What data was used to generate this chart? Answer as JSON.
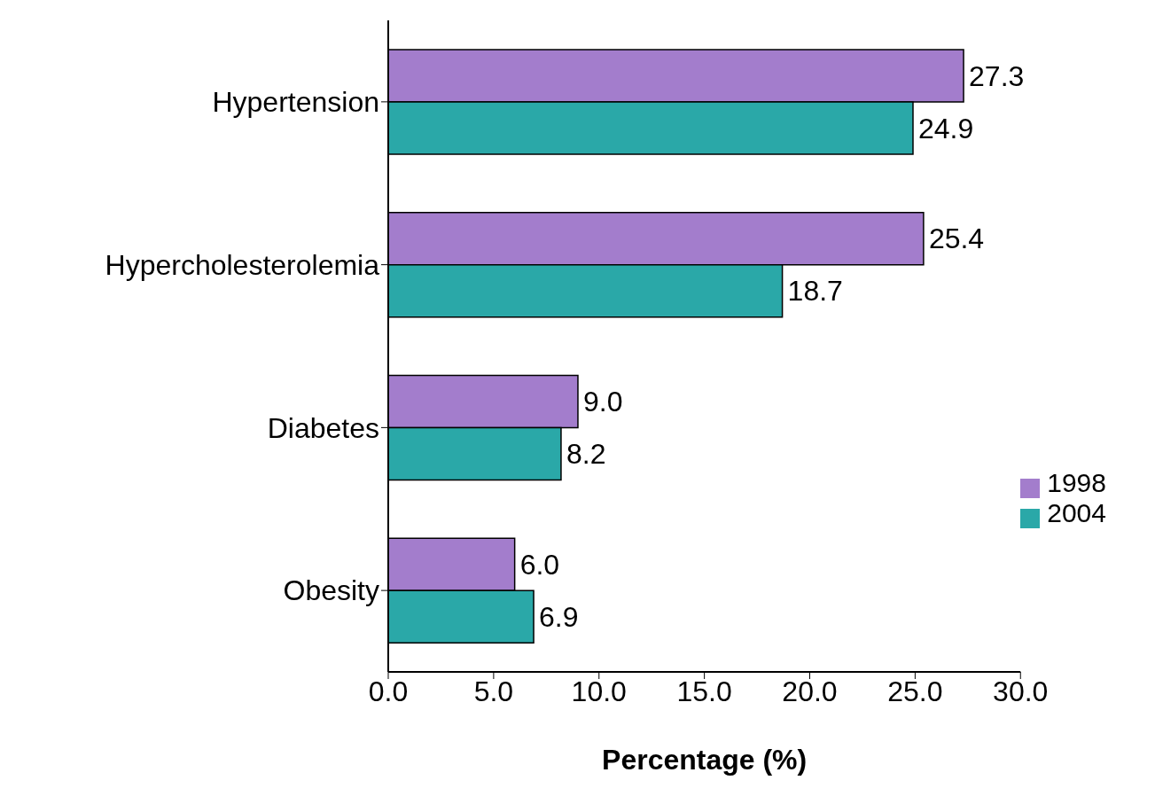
{
  "chart_data": {
    "type": "bar",
    "orientation": "horizontal",
    "xlabel": "Percentage (%)",
    "categories": [
      "Hypertension",
      "Hypercholesterolemia",
      "Diabetes",
      "Obesity"
    ],
    "series": [
      {
        "name": "1998",
        "color": "#a37dcc",
        "values": [
          27.3,
          25.4,
          9.0,
          6.0
        ],
        "value_labels": [
          "27.3",
          "25.4",
          "9.0",
          "6.0"
        ]
      },
      {
        "name": "2004",
        "color": "#2aa8a8",
        "values": [
          24.9,
          18.7,
          8.2,
          6.9
        ],
        "value_labels": [
          "24.9",
          "18.7",
          "8.2",
          "6.9"
        ]
      }
    ],
    "xlim": [
      0,
      30
    ],
    "xticks": [
      {
        "value": 0,
        "label": "0.0"
      },
      {
        "value": 5,
        "label": "5.0"
      },
      {
        "value": 10,
        "label": "10.0"
      },
      {
        "value": 15,
        "label": "15.0"
      },
      {
        "value": 20,
        "label": "20.0"
      },
      {
        "value": 25,
        "label": "25.0"
      },
      {
        "value": 30,
        "label": "30.0"
      }
    ],
    "grid": false,
    "legend": "bottom right"
  }
}
